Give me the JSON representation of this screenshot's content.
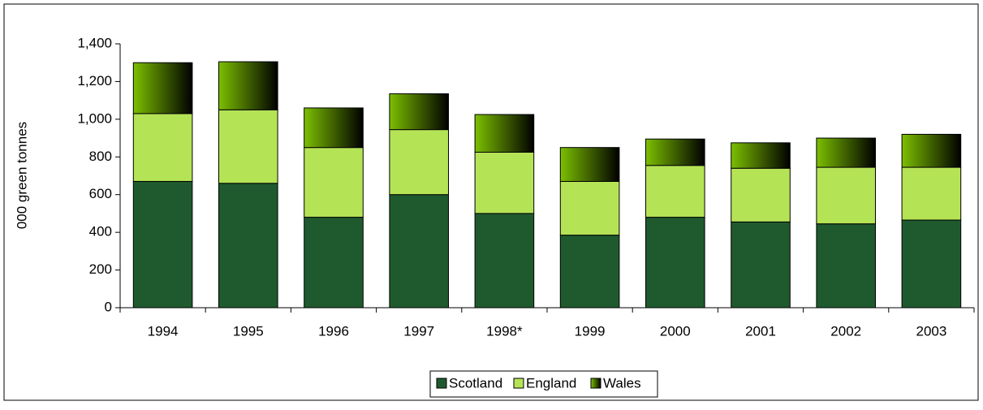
{
  "chart_data": {
    "type": "stacked-bar",
    "y_label": "000 green tonnes",
    "categories": [
      "1994",
      "1995",
      "1996",
      "1997",
      "1998*",
      "1999",
      "2000",
      "2001",
      "2002",
      "2003"
    ],
    "series": [
      {
        "name": "Scotland",
        "color": "#1f5a2e",
        "values": [
          670,
          660,
          480,
          600,
          500,
          385,
          480,
          455,
          445,
          465
        ]
      },
      {
        "name": "England",
        "color": "#b5e356",
        "values": [
          360,
          390,
          370,
          345,
          325,
          285,
          275,
          285,
          300,
          280
        ]
      },
      {
        "name": "Wales",
        "color": "#7cbf00",
        "values": [
          270,
          255,
          210,
          190,
          200,
          180,
          140,
          135,
          155,
          175
        ]
      }
    ],
    "ylim": [
      0,
      1400
    ],
    "yticks": [
      0,
      200,
      400,
      600,
      800,
      {
        "value": 1000,
        "label": "1,000"
      },
      {
        "value": 1200,
        "label": "1,200"
      },
      {
        "value": 1400,
        "label": "1,400"
      }
    ]
  }
}
